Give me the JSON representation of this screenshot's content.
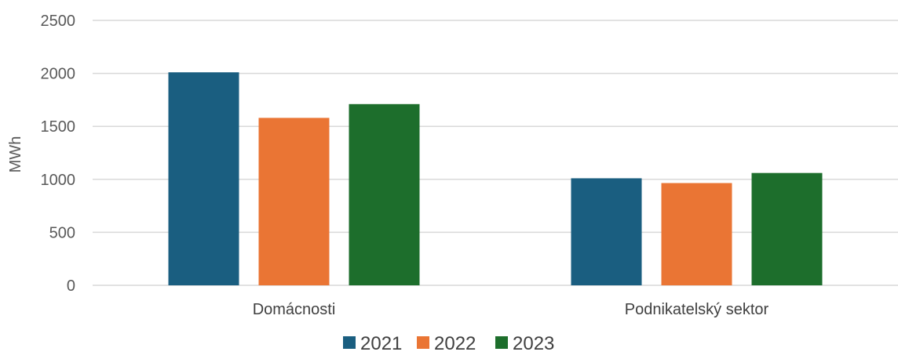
{
  "chart_data": {
    "type": "bar",
    "categories": [
      "Domácnosti",
      "Podnikatelský sektor"
    ],
    "series": [
      {
        "name": "2021",
        "values": [
          2010,
          1010
        ],
        "color": "#1a5e80"
      },
      {
        "name": "2022",
        "values": [
          1580,
          965
        ],
        "color": "#ea7534"
      },
      {
        "name": "2023",
        "values": [
          1710,
          1060
        ],
        "color": "#1d6e2c"
      }
    ],
    "ylabel": "MWh",
    "ylim": [
      0,
      2500
    ],
    "yticks": [
      0,
      500,
      1000,
      1500,
      2000,
      2500
    ],
    "grid": true,
    "legend": "bottom"
  }
}
